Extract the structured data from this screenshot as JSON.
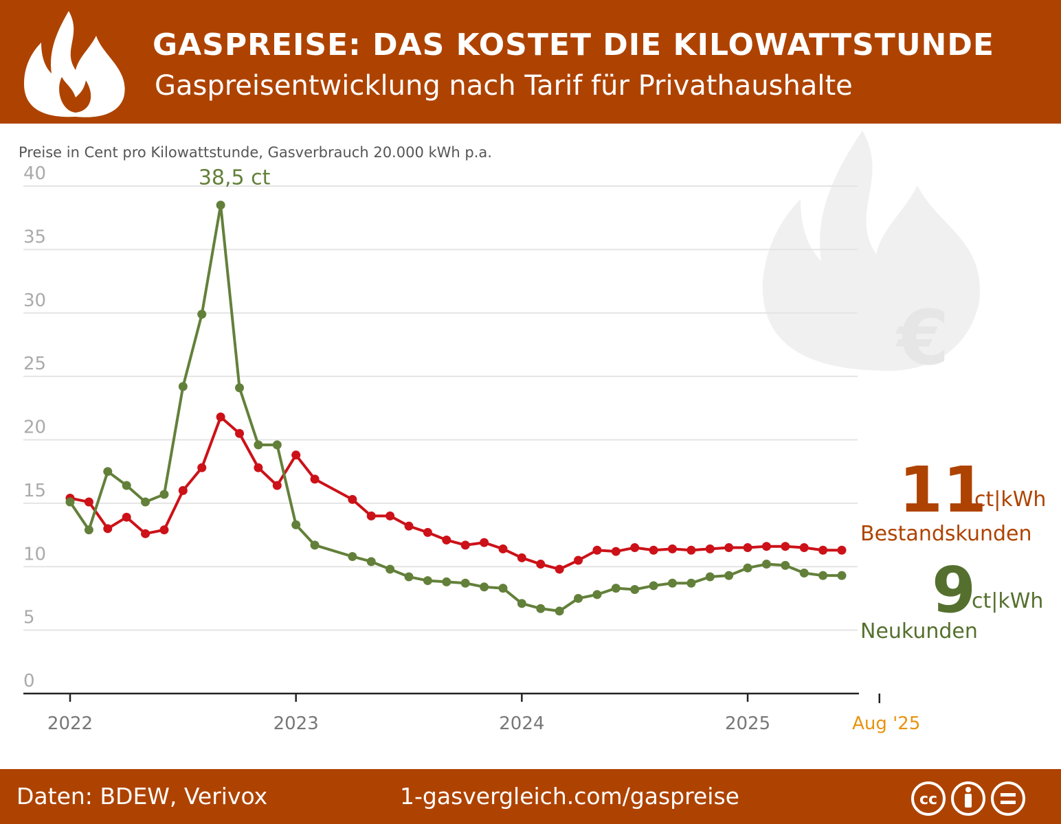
{
  "header": {
    "title": "GASPREISE: DAS KOSTET DIE KILOWATTSTUNDE",
    "subtitle": "Gaspreisentwicklung nach Tarif für Privathaushalte"
  },
  "footer": {
    "source": "Daten: BDEW, Verivox",
    "url": "1-gasvergleich.com/gaspreise",
    "license_icons": [
      "cc-icon",
      "by-icon",
      "nd-icon"
    ]
  },
  "callouts": {
    "existing": {
      "value": "11",
      "unit": "ct|kWh",
      "label": "Bestandskunden",
      "color": "#ae4301"
    },
    "new": {
      "value": "9",
      "unit": "ct|kWh",
      "label": "Neukunden",
      "color": "#55702e"
    }
  },
  "chart_data": {
    "type": "line",
    "note": "Preise in Cent pro Kilowattstunde, Gasverbrauch 20.000 kWh p.a.",
    "ylim": [
      0,
      40
    ],
    "yticks": [
      "0",
      "5",
      "10",
      "15",
      "20",
      "25",
      "30",
      "35",
      "40"
    ],
    "xticks": [
      "2022",
      "2023",
      "2024",
      "2025"
    ],
    "last_tick": "Aug '25",
    "grid": true,
    "annotation": "38,5 ct",
    "x": [
      "2022-01",
      "2022-02",
      "2022-03",
      "2022-04",
      "2022-05",
      "2022-06",
      "2022-07",
      "2022-08",
      "2022-09",
      "2022-10",
      "2022-11",
      "2022-12",
      "2023-01",
      "2023-02",
      "2023-04",
      "2023-05",
      "2023-06",
      "2023-07",
      "2023-08",
      "2023-09",
      "2023-10",
      "2023-11",
      "2023-12",
      "2024-01",
      "2024-02",
      "2024-03",
      "2024-04",
      "2024-05",
      "2024-06",
      "2024-07",
      "2024-08",
      "2024-09",
      "2024-10",
      "2024-11",
      "2024-12",
      "2025-01",
      "2025-02",
      "2025-03",
      "2025-04",
      "2025-05",
      "2025-06"
    ],
    "series": [
      {
        "key": "bestandskunden",
        "color": "#cc1118",
        "values": [
          15.4,
          15.1,
          13.0,
          13.9,
          12.6,
          12.9,
          16.0,
          17.8,
          21.8,
          20.5,
          17.8,
          16.4,
          18.8,
          16.9,
          15.3,
          14.0,
          14.0,
          13.2,
          12.7,
          12.1,
          11.7,
          11.9,
          11.4,
          10.7,
          10.2,
          9.8,
          10.5,
          11.3,
          11.2,
          11.5,
          11.3,
          11.4,
          11.3,
          11.4,
          11.5,
          11.5,
          11.6,
          11.6,
          11.5,
          11.3,
          11.3
        ]
      },
      {
        "key": "neukunden",
        "color": "#63803a",
        "values": [
          15.1,
          12.9,
          17.5,
          16.4,
          15.1,
          15.7,
          24.2,
          29.9,
          38.5,
          24.1,
          19.6,
          19.6,
          13.3,
          11.7,
          10.8,
          10.4,
          9.8,
          9.2,
          8.9,
          8.8,
          8.7,
          8.4,
          8.3,
          7.1,
          6.7,
          6.5,
          7.5,
          7.8,
          8.3,
          8.2,
          8.5,
          8.7,
          8.7,
          9.2,
          9.3,
          9.9,
          10.2,
          10.1,
          9.5,
          9.3,
          9.3
        ]
      }
    ]
  }
}
